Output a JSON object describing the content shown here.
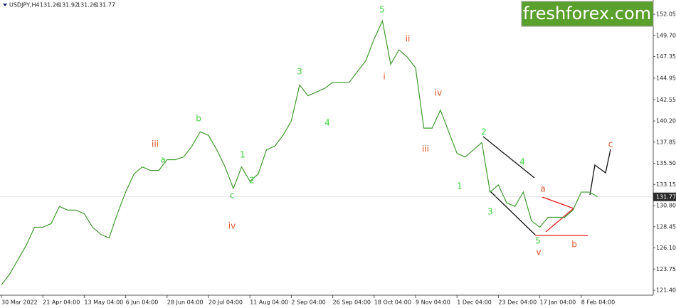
{
  "chart_data": {
    "type": "line",
    "symbol": "USDJPY,H4",
    "ohlc": [
      131.26,
      131.92,
      131.26,
      131.77
    ],
    "watermark": "freshforex.com",
    "categories": [
      "30 Mar 2022",
      null,
      null,
      null,
      null,
      "21 Apr 04:00",
      null,
      null,
      null,
      null,
      "13 May 04:00",
      null,
      null,
      null,
      null,
      "6 Jun 04:00",
      null,
      null,
      null,
      null,
      "28 Jun 04:00",
      null,
      null,
      null,
      null,
      "20 Jul 04:00",
      null,
      null,
      null,
      null,
      "11 Aug 04:00",
      null,
      null,
      null,
      null,
      "2 Sep 04:00",
      null,
      null,
      null,
      null,
      "26 Sep 04:00",
      null,
      null,
      null,
      null,
      "18 Oct 04:00",
      null,
      null,
      null,
      null,
      "9 Nov 04:00",
      null,
      null,
      null,
      null,
      "1 Dec 04:00",
      null,
      null,
      null,
      null,
      "23 Dec 04:00",
      null,
      null,
      null,
      null,
      "17 Jan 04:00",
      null,
      null,
      null,
      null,
      "8 Feb 04:00",
      null,
      null
    ],
    "series": [
      {
        "color": "#3f9a2e",
        "values": [
          122.0,
          123.2,
          124.8,
          126.4,
          128.4,
          128.4,
          128.8,
          130.7,
          130.3,
          130.3,
          129.9,
          128.4,
          127.6,
          127.2,
          129.9,
          132.3,
          134.3,
          135.1,
          134.7,
          134.7,
          135.9,
          135.9,
          136.2,
          137.4,
          139.0,
          138.6,
          137.0,
          135.1,
          132.7,
          135.1,
          133.5,
          134.3,
          137.0,
          137.4,
          138.6,
          140.2,
          144.2,
          143.0,
          143.4,
          143.8,
          144.5,
          144.5,
          144.5,
          145.7,
          146.9,
          149.3,
          151.3,
          146.5,
          148.1,
          147.3,
          146.1,
          139.4,
          139.4,
          141.4,
          139.0,
          136.6,
          136.2,
          137.0,
          137.8,
          132.3,
          133.1,
          131.1,
          130.7,
          132.3,
          129.1,
          128.4,
          129.5,
          129.5,
          129.5,
          130.3,
          132.3,
          132.3,
          131.77
        ]
      }
    ],
    "ylim": [
      120.85,
      153.63
    ],
    "yticks": [
      {
        "value": 121.4,
        "label": "121.40"
      },
      123.75,
      {
        "value": 126.1,
        "label": "126.10"
      },
      128.45,
      {
        "value": 130.8,
        "label": "130.80"
      },
      133.15,
      {
        "value": 135.5,
        "label": "135.50"
      },
      137.85,
      {
        "value": 140.2,
        "label": "140.20"
      },
      142.55,
      144.95,
      147.35,
      {
        "value": 149.7,
        "label": "149.70"
      },
      152.05
    ],
    "annotations": [
      {
        "text": "5",
        "color": "#3ed13e"
      },
      {
        "text": "ii",
        "color": "#d9542a"
      },
      {
        "text": "i",
        "color": "#d9542a"
      },
      {
        "text": "iv",
        "color": "#d9542a"
      },
      {
        "text": "iii",
        "color": "#d9542a"
      },
      {
        "text": "3",
        "color": "#3ed13e"
      },
      {
        "text": "4",
        "color": "#3ed13e"
      },
      {
        "text": "b",
        "color": "#3ed13e"
      },
      {
        "text": "iii",
        "color": "#d9542a"
      },
      {
        "text": "a",
        "color": "#3ed13e"
      },
      {
        "text": "1",
        "color": "#3ed13e"
      },
      {
        "text": "2",
        "color": "#3ed13e"
      },
      {
        "text": "c",
        "color": "#3ed13e"
      },
      {
        "text": "iv",
        "color": "#d9542a"
      },
      {
        "text": "2",
        "color": "#3ed13e"
      },
      {
        "text": "4",
        "color": "#3ed13e"
      },
      {
        "text": "1",
        "color": "#3ed13e"
      },
      {
        "text": "3",
        "color": "#3ed13e"
      },
      {
        "text": "5",
        "color": "#3ed13e"
      },
      {
        "text": "v",
        "color": "#d9542a"
      },
      {
        "text": "a",
        "color": "#d9542a"
      },
      {
        "text": "b",
        "color": "#d9542a"
      },
      {
        "text": "c",
        "color": "#d9542a"
      }
    ]
  }
}
